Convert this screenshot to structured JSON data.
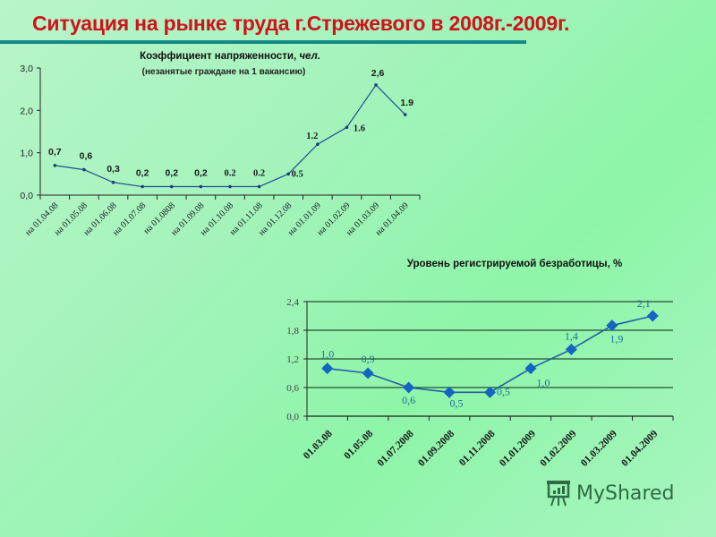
{
  "page": {
    "title": "Ситуация на рынке труда г.Стрежевого в 2008г.-2009г.",
    "accent_color": "#d0121b",
    "rule_color": "#138a8a"
  },
  "watermark": {
    "label": "MyShared"
  },
  "chart_data": [
    {
      "type": "line",
      "title": "Коэффициент напряженности, чел.",
      "title_plain": "Коэффициент напряженности, ",
      "title_italic": "чел.",
      "subtitle": "(незанятые граждане на 1 вакансию)",
      "xlabel": "",
      "ylabel": "",
      "ylim": [
        0,
        3.0
      ],
      "yticks": [
        "0,0",
        "1,0",
        "2,0",
        "3,0"
      ],
      "grid": false,
      "line_color": "#1f4f8f",
      "categories": [
        "на 01.04.08",
        "на 01.05.08",
        "на 01.06.08",
        "на 01.07.08",
        "на 01.0808",
        "на 01.09.08",
        "на 01.10.08",
        "на 01.11.08",
        "на 01.12.08",
        "на 01.01.09",
        "на 01.02.09",
        "на 01.03.09",
        "на 01.04.09"
      ],
      "values": [
        0.7,
        0.6,
        0.3,
        0.2,
        0.2,
        0.2,
        0.2,
        0.2,
        0.5,
        1.2,
        1.6,
        2.6,
        1.9
      ],
      "data_labels": [
        "0,7",
        "0,6",
        "0,3",
        "0,2",
        "0,2",
        "0,2",
        "0.2",
        "0.2",
        "0.5",
        "1.2",
        "1.6",
        "2,6",
        "1.9"
      ]
    },
    {
      "type": "line",
      "title": "Уровень регистрируемой безработицы, %",
      "xlabel": "",
      "ylabel": "",
      "ylim": [
        0,
        2.4
      ],
      "yticks": [
        "0,0",
        "0,6",
        "1,2",
        "1,8",
        "2,4"
      ],
      "grid": true,
      "line_color": "#1f5fa8",
      "marker": "diamond",
      "marker_color": "#1565c0",
      "categories": [
        "01.03.08",
        "01.05.08",
        "01.07.2008",
        "01.09.2008",
        "01.11.2008",
        "01.01.2009",
        "01.02.2009",
        "01.03.2009",
        "01.04.2009"
      ],
      "values": [
        1.0,
        0.9,
        0.6,
        0.5,
        0.5,
        1.0,
        1.4,
        1.9,
        2.1
      ],
      "data_labels": [
        "1,0",
        "0,9",
        "0,6",
        "0,5",
        "0,5",
        "1,0",
        "1,4",
        "1,9",
        "2,1"
      ]
    }
  ]
}
